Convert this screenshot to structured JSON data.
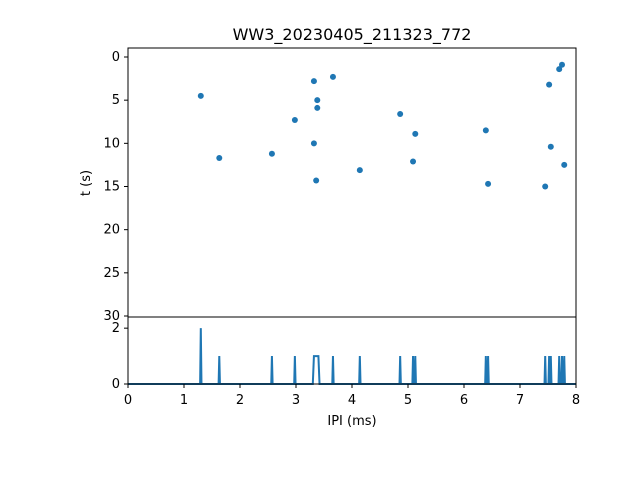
{
  "chart_data": [
    {
      "type": "scatter",
      "title": "WW3_20230405_211323_772",
      "xlabel": "",
      "ylabel": "t (s)",
      "xlim": [
        0,
        8
      ],
      "ylim": [
        30,
        0
      ],
      "yticks": [
        "0",
        "5",
        "10",
        "15",
        "20",
        "25",
        "30"
      ],
      "color": "#1f77b4",
      "points": [
        [
          1.3,
          4.5
        ],
        [
          1.63,
          11.7
        ],
        [
          2.57,
          11.2
        ],
        [
          2.98,
          7.3
        ],
        [
          3.32,
          2.8
        ],
        [
          3.38,
          5.0
        ],
        [
          3.38,
          5.9
        ],
        [
          3.32,
          10.0
        ],
        [
          3.36,
          14.3
        ],
        [
          3.66,
          2.3
        ],
        [
          4.14,
          13.1
        ],
        [
          4.86,
          6.6
        ],
        [
          5.13,
          8.9
        ],
        [
          5.09,
          12.1
        ],
        [
          6.39,
          8.5
        ],
        [
          6.43,
          14.7
        ],
        [
          7.45,
          15.0
        ],
        [
          7.52,
          3.2
        ],
        [
          7.55,
          10.4
        ],
        [
          7.7,
          1.4
        ],
        [
          7.75,
          0.9
        ],
        [
          7.79,
          12.5
        ]
      ]
    },
    {
      "type": "line",
      "xlabel": "IPI (ms)",
      "ylabel": "",
      "xlim": [
        0,
        8
      ],
      "ylim": [
        0,
        2.4
      ],
      "xticks": [
        "0",
        "1",
        "2",
        "3",
        "4",
        "5",
        "6",
        "7",
        "8"
      ],
      "yticks": [
        "0",
        "2"
      ],
      "color": "#1f77b4",
      "spikes": [
        [
          1.3,
          2
        ],
        [
          1.63,
          1
        ],
        [
          2.57,
          1
        ],
        [
          2.98,
          1
        ],
        [
          3.36,
          1
        ],
        [
          3.66,
          1
        ],
        [
          4.14,
          1
        ],
        [
          4.86,
          1
        ],
        [
          5.09,
          1
        ],
        [
          5.13,
          1
        ],
        [
          6.39,
          1
        ],
        [
          6.43,
          1
        ],
        [
          7.45,
          1
        ],
        [
          7.52,
          1
        ],
        [
          7.55,
          1
        ],
        [
          7.7,
          1
        ],
        [
          7.75,
          1
        ],
        [
          7.79,
          1
        ]
      ]
    }
  ]
}
